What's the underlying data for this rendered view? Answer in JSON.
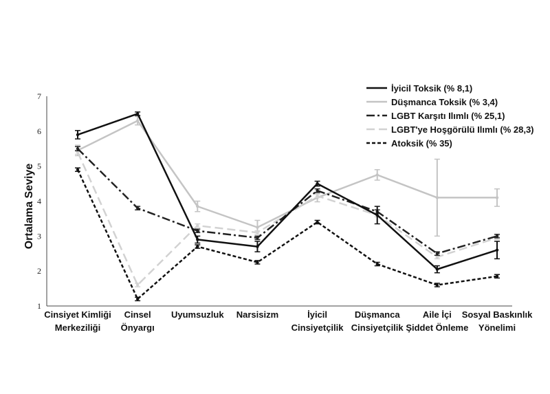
{
  "chart_data": {
    "type": "line",
    "title": "",
    "xlabel": "",
    "ylabel": "Ortalama Seviye",
    "ylim": [
      1,
      7
    ],
    "yticks": [
      "1",
      "2",
      "3",
      "4",
      "5",
      "6",
      "7"
    ],
    "categories": [
      [
        "Cinsiyet Kimliği",
        "Merkeziliği"
      ],
      [
        "Cinsel",
        "Önyargı"
      ],
      [
        "Uyumsuzluk"
      ],
      [
        "Narsisizm"
      ],
      [
        "İyicil",
        "Cinsiyetçilik"
      ],
      [
        "Düşmanca",
        "Cinsiyetçilik"
      ],
      [
        "Aile İçi",
        "Şiddet Önleme"
      ],
      [
        "Sosyal Baskınlık",
        "Yönelimi"
      ]
    ],
    "legend_position": "top-right",
    "series": [
      {
        "name": "İyicil Toksik (% 8,1)",
        "color": "#111111",
        "dash": "solid",
        "values": [
          5.9,
          6.5,
          2.9,
          2.7,
          4.5,
          3.6,
          2.05,
          2.6
        ],
        "errors": [
          0.12,
          0.05,
          0.1,
          0.15,
          0.07,
          0.25,
          0.1,
          0.25
        ]
      },
      {
        "name": "Düşmanca Toksik (% 3,4)",
        "color": "#c4c4c4",
        "dash": "solid",
        "values": [
          5.45,
          6.3,
          3.85,
          3.25,
          4.1,
          4.75,
          4.1,
          4.1
        ],
        "errors": [
          0.15,
          0.12,
          0.15,
          0.2,
          0.12,
          0.15,
          1.1,
          0.25
        ]
      },
      {
        "name": "LGBT Karşıtı Ilımlı (% 25,1)",
        "color": "#222222",
        "dash": "dashdot",
        "values": [
          5.5,
          3.8,
          3.15,
          2.95,
          4.3,
          3.7,
          2.5,
          3.0
        ],
        "errors": [
          0.06,
          0.05,
          0.05,
          0.05,
          0.05,
          0.05,
          0.05,
          0.05
        ]
      },
      {
        "name": "LGBT'ye Hoşgörülü Ilımlı (% 28,3)",
        "color": "#d2d2d2",
        "dash": "longdash",
        "values": [
          5.4,
          1.6,
          3.3,
          3.1,
          4.15,
          3.6,
          2.4,
          2.95
        ],
        "errors": [
          0.06,
          0.05,
          0.05,
          0.05,
          0.05,
          0.05,
          0.05,
          0.05
        ]
      },
      {
        "name": "Atoksik (% 35)",
        "color": "#111111",
        "dash": "dashed",
        "values": [
          4.9,
          1.2,
          2.7,
          2.25,
          3.4,
          2.2,
          1.6,
          1.85
        ],
        "errors": [
          0.05,
          0.05,
          0.05,
          0.05,
          0.05,
          0.05,
          0.05,
          0.05
        ]
      }
    ]
  }
}
